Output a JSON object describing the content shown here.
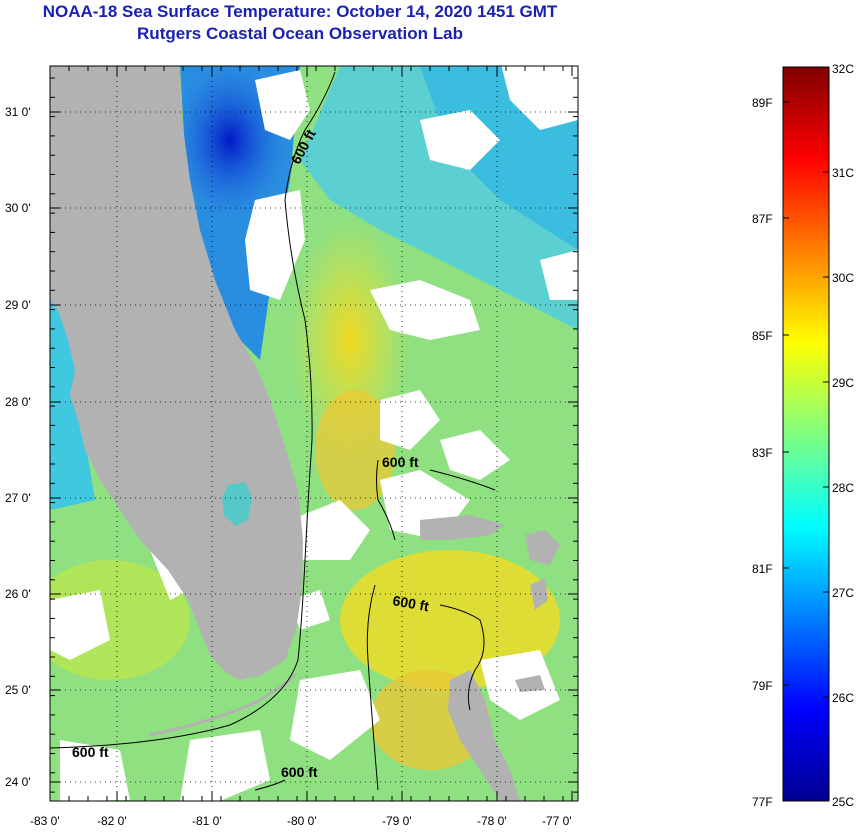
{
  "header": {
    "title": "NOAA-18 Sea Surface Temperature:  October 14, 2020 1451 GMT",
    "subtitle": "Rutgers Coastal Ocean Observation Lab"
  },
  "colors": {
    "title": "#1a22b4",
    "land": "#b2b2b2",
    "cloud": "#ffffff",
    "contour": "#000000",
    "water_warm": "#e8e020",
    "water_mid": "#8fe080",
    "water_cool": "#40c8e0",
    "water_cold": "#1030d0"
  },
  "axes": {
    "x_ticks": [
      "-83 0'",
      "-82 0'",
      "-81 0'",
      "-80 0'",
      "-79 0'",
      "-78 0'",
      "-77 0'"
    ],
    "y_ticks": [
      "31 0'",
      "30 0'",
      "29 0'",
      "28 0'",
      "27 0'",
      "26 0'",
      "25 0'",
      "24 0'"
    ],
    "lon_range": [
      -83.0,
      -76.8
    ],
    "lat_range": [
      23.85,
      31.45
    ]
  },
  "contours": {
    "labels": [
      "600 ft",
      "600 ft",
      "600 ft",
      "600 ft",
      "600 ft"
    ]
  },
  "colorbar": {
    "celsius_labels": [
      "32C",
      "31C",
      "30C",
      "29C",
      "28C",
      "27C",
      "26C",
      "25C"
    ],
    "fahrenheit_labels": [
      "89F",
      "87F",
      "85F",
      "83F",
      "81F",
      "79F",
      "77F"
    ],
    "range_c": [
      25,
      32
    ]
  },
  "places": {
    "florida": "Florida peninsula",
    "bahamas": "Bahamas"
  }
}
